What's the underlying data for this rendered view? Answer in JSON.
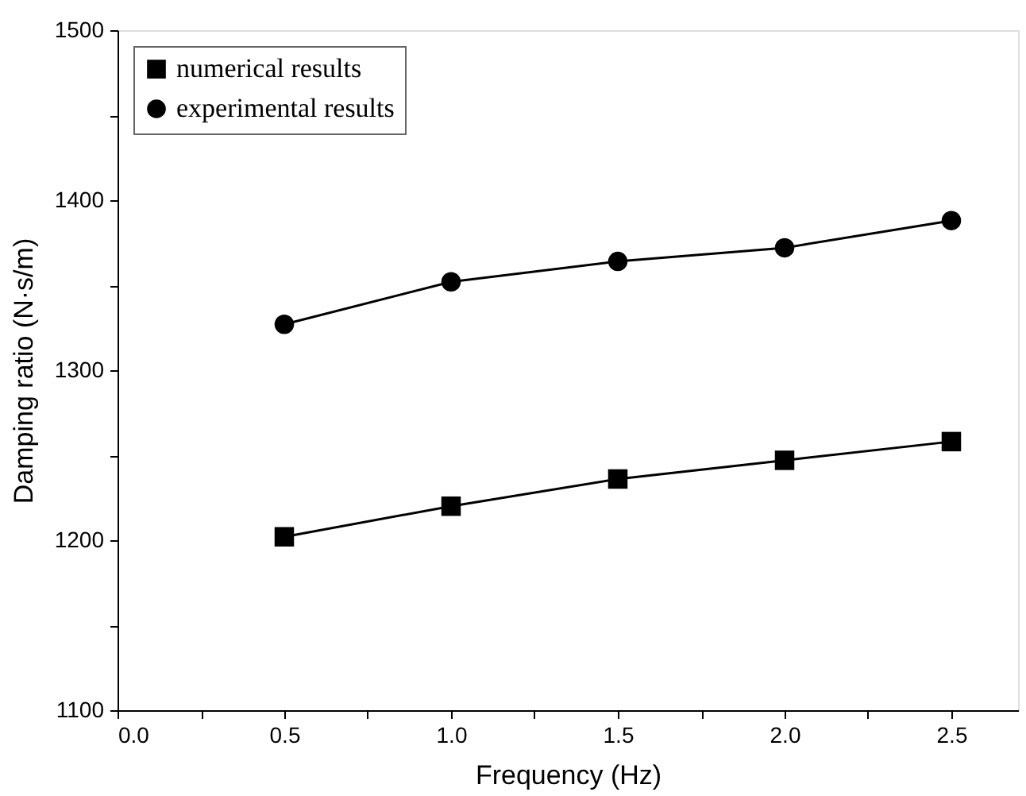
{
  "chart_data": {
    "type": "line",
    "xlabel": "Frequency (Hz)",
    "ylabel": "Damping ratio (N·s/m)",
    "x": [
      0.5,
      1.0,
      1.5,
      2.0,
      2.5
    ],
    "series": [
      {
        "name": "numerical results",
        "color": "#000000",
        "marker": "square",
        "values": [
          1202,
          1220,
          1236,
          1247,
          1258
        ]
      },
      {
        "name": "experimental results",
        "color": "#000000",
        "marker": "circle",
        "values": [
          1327,
          1352,
          1364,
          1372,
          1388
        ]
      }
    ],
    "xlim": [
      0,
      2.7
    ],
    "xticks": [
      {
        "value": 0,
        "label": "0.0"
      },
      {
        "value": 0.25,
        "label": null
      },
      0.5,
      {
        "value": 0.75,
        "label": null
      },
      {
        "value": 1,
        "label": "1.0"
      },
      {
        "value": 1.25,
        "label": null
      },
      1.5,
      {
        "value": 1.75,
        "label": null
      },
      {
        "value": 2,
        "label": "2.0"
      },
      {
        "value": 2.25,
        "label": null
      },
      2.5
    ],
    "ylim": [
      1100,
      1500
    ],
    "yticks": [
      1100,
      {
        "value": 1150,
        "label": null
      },
      1200,
      {
        "value": 1250,
        "label": null
      },
      1300,
      {
        "value": 1350,
        "label": null
      },
      1400,
      {
        "value": 1450,
        "label": null
      },
      1500
    ],
    "grid": false,
    "legend": "top left",
    "line_style": "solid"
  }
}
